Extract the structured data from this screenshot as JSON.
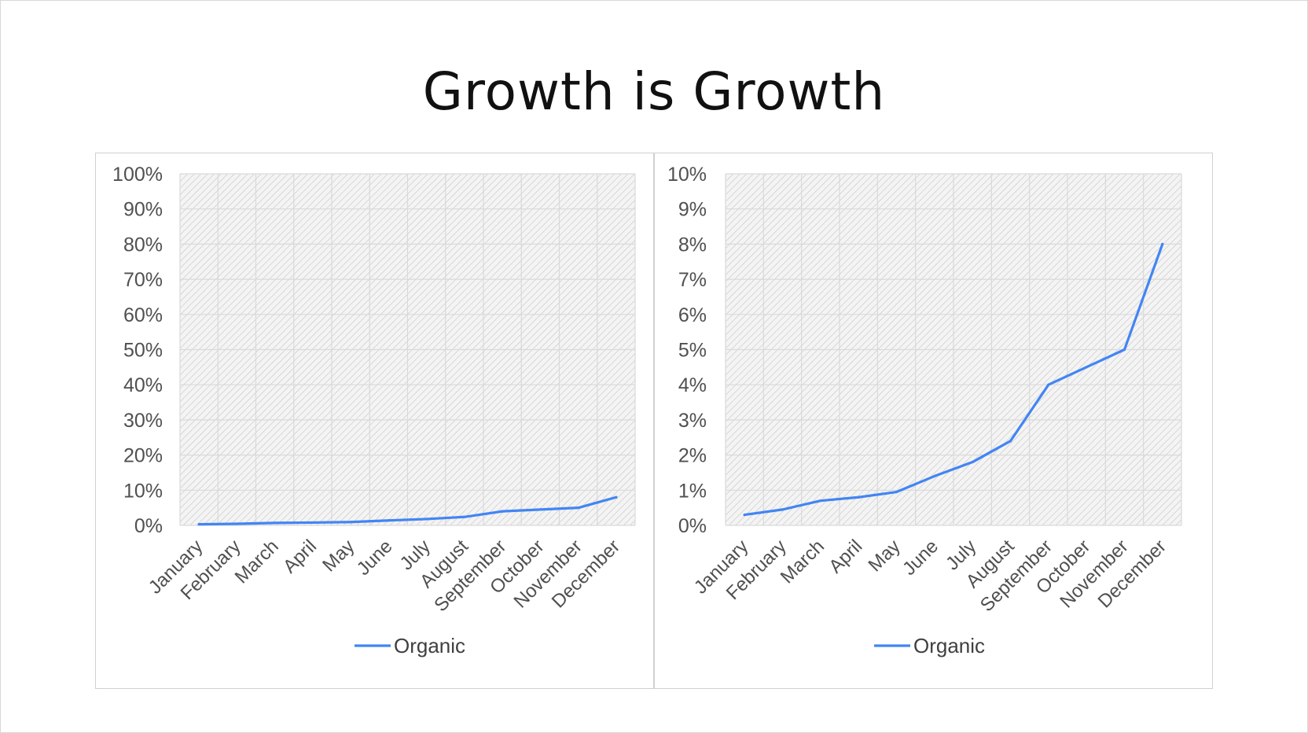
{
  "slide": {
    "title": "Growth is Growth"
  },
  "colors": {
    "series": "#4285F4",
    "grid": "#d9d9d9",
    "hatch": "#cfcfcf",
    "text": "#505050"
  },
  "chart_data": [
    {
      "type": "line",
      "title": "",
      "xlabel": "",
      "ylabel": "",
      "categories": [
        "January",
        "February",
        "March",
        "April",
        "May",
        "June",
        "July",
        "August",
        "September",
        "October",
        "November",
        "December"
      ],
      "series": [
        {
          "name": "Organic",
          "values": [
            0.3,
            0.45,
            0.7,
            0.8,
            0.95,
            1.4,
            1.8,
            2.4,
            4.0,
            4.5,
            5.0,
            8.0
          ]
        }
      ],
      "ylim": [
        0,
        100
      ],
      "yticks": [
        "0%",
        "10%",
        "20%",
        "30%",
        "40%",
        "50%",
        "60%",
        "70%",
        "80%",
        "90%",
        "100%"
      ],
      "grid": true,
      "legend": "bottom-center"
    },
    {
      "type": "line",
      "title": "",
      "xlabel": "",
      "ylabel": "",
      "categories": [
        "January",
        "February",
        "March",
        "April",
        "May",
        "June",
        "July",
        "August",
        "September",
        "October",
        "November",
        "December"
      ],
      "series": [
        {
          "name": "Organic",
          "values": [
            0.3,
            0.45,
            0.7,
            0.8,
            0.95,
            1.4,
            1.8,
            2.4,
            4.0,
            4.5,
            5.0,
            8.0
          ]
        }
      ],
      "ylim": [
        0,
        10
      ],
      "yticks": [
        "0%",
        "1%",
        "2%",
        "3%",
        "4%",
        "5%",
        "6%",
        "7%",
        "8%",
        "9%",
        "10%"
      ],
      "grid": true,
      "legend": "bottom-center"
    }
  ]
}
